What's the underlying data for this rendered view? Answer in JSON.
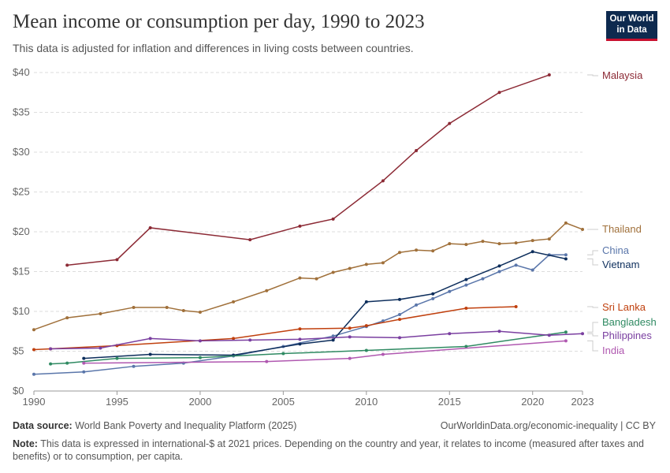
{
  "header": {
    "title": "Mean income or consumption per day, 1990 to 2023",
    "subtitle": "This data is adjusted for inflation and differences in living costs between countries.",
    "logo": "Our World in Data"
  },
  "footer": {
    "source_label": "Data source:",
    "source": "World Bank Poverty and Inequality Platform (2025)",
    "url": "OurWorldinData.org/economic-inequality | CC BY",
    "note_label": "Note:",
    "note": "This data is expressed in international-$ at 2021 prices. Depending on the country and year, it relates to income (measured after taxes and benefits) or to consumption, per capita."
  },
  "chart_data": {
    "type": "line",
    "title": "Mean income or consumption per day, 1990 to 2023",
    "xlim": [
      1990,
      2023
    ],
    "ylim": [
      0,
      40
    ],
    "grid": "horizontal dashed",
    "legend": "right, inline labels",
    "xticks": [
      "1990",
      "1995",
      "2000",
      "2005",
      "2010",
      "2015",
      "2020",
      "2023"
    ],
    "yticks": [
      "$0",
      "$5",
      "$10",
      "$15",
      "$20",
      "$25",
      "$30",
      "$35",
      "$40"
    ],
    "series": [
      {
        "name": "Malaysia",
        "color": "#8c2a35",
        "x": [
          1992,
          1995,
          1997,
          2003,
          2006,
          2008,
          2011,
          2013,
          2015,
          2018,
          2021
        ],
        "y": [
          15.8,
          16.5,
          20.5,
          19.0,
          20.7,
          21.6,
          26.4,
          30.2,
          33.6,
          37.5,
          39.7
        ]
      },
      {
        "name": "Thailand",
        "color": "#a0703a",
        "x": [
          1990,
          1992,
          1994,
          1996,
          1998,
          1999,
          2000,
          2002,
          2004,
          2006,
          2007,
          2008,
          2009,
          2010,
          2011,
          2012,
          2013,
          2014,
          2015,
          2016,
          2017,
          2018,
          2019,
          2020,
          2021,
          2022,
          2023
        ],
        "y": [
          7.7,
          9.2,
          9.7,
          10.5,
          10.5,
          10.1,
          9.9,
          11.2,
          12.6,
          14.2,
          14.1,
          14.9,
          15.4,
          15.9,
          16.1,
          17.4,
          17.7,
          17.6,
          18.5,
          18.4,
          18.8,
          18.5,
          18.6,
          18.9,
          19.1,
          21.1,
          20.3
        ]
      },
      {
        "name": "China",
        "color": "#5a76aa",
        "x": [
          1990,
          1993,
          1996,
          1999,
          2002,
          2005,
          2008,
          2010,
          2011,
          2012,
          2013,
          2014,
          2015,
          2016,
          2017,
          2018,
          2019,
          2020,
          2021,
          2022
        ],
        "y": [
          2.1,
          2.4,
          3.1,
          3.5,
          4.4,
          5.6,
          6.9,
          8.1,
          8.8,
          9.6,
          10.8,
          11.6,
          12.5,
          13.3,
          14.1,
          15.0,
          15.8,
          15.2,
          17.1,
          17.1
        ]
      },
      {
        "name": "Vietnam",
        "color": "#0d2e5c",
        "x": [
          1993,
          1997,
          2002,
          2006,
          2008,
          2010,
          2012,
          2014,
          2016,
          2018,
          2020,
          2022
        ],
        "y": [
          4.1,
          4.6,
          4.5,
          5.9,
          6.4,
          11.2,
          11.5,
          12.2,
          14.0,
          15.7,
          17.5,
          16.6
        ]
      },
      {
        "name": "Sri Lanka",
        "color": "#c0400e",
        "x": [
          1990,
          1991,
          1995,
          2002,
          2006,
          2009,
          2010,
          2012,
          2016,
          2019
        ],
        "y": [
          5.2,
          5.3,
          5.7,
          6.6,
          7.8,
          7.9,
          8.2,
          9.0,
          10.4,
          10.6
        ]
      },
      {
        "name": "Bangladesh",
        "color": "#2f8a62",
        "x": [
          1991,
          1992,
          1995,
          2000,
          2005,
          2010,
          2016,
          2022
        ],
        "y": [
          3.4,
          3.5,
          4.1,
          4.2,
          4.7,
          5.1,
          5.6,
          7.4
        ]
      },
      {
        "name": "Philippines",
        "color": "#7a3fa0",
        "x": [
          1991,
          1994,
          1997,
          2000,
          2003,
          2006,
          2009,
          2012,
          2015,
          2018,
          2021,
          2023
        ],
        "y": [
          5.3,
          5.4,
          6.6,
          6.3,
          6.4,
          6.5,
          6.8,
          6.7,
          7.2,
          7.5,
          7.0,
          7.2
        ]
      },
      {
        "name": "India",
        "color": "#b058b0",
        "x": [
          1993,
          2004,
          2009,
          2011,
          2022
        ],
        "y": [
          3.5,
          3.7,
          4.1,
          4.6,
          6.3
        ]
      }
    ]
  }
}
